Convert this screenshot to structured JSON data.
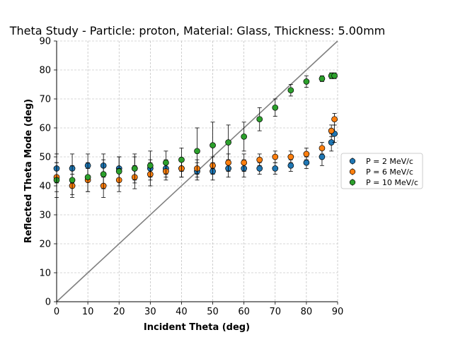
{
  "chart_data": {
    "type": "scatter",
    "title": "Theta Study - Particle: proton, Material: Glass, Thickness: 5.00mm",
    "xlabel": "Incident Theta (deg)",
    "ylabel": "Reflected Theta Mode (deg)",
    "xlim": [
      0,
      90
    ],
    "ylim": [
      0,
      90
    ],
    "xticks": [
      "0",
      "10",
      "20",
      "30",
      "40",
      "50",
      "60",
      "70",
      "80",
      "90"
    ],
    "yticks": [
      "0",
      "10",
      "20",
      "30",
      "40",
      "50",
      "60",
      "70",
      "80",
      "90"
    ],
    "grid": true,
    "legend_position": "right",
    "reference_line": {
      "x": [
        0,
        90
      ],
      "y": [
        0,
        90
      ],
      "color": "#808080"
    },
    "series": [
      {
        "name": "P = 2 MeV/c",
        "color": "#1f77b4",
        "x": [
          0,
          5,
          10,
          15,
          20,
          25,
          30,
          35,
          40,
          45,
          50,
          55,
          60,
          65,
          70,
          75,
          80,
          85,
          88,
          89
        ],
        "y": [
          46,
          46,
          47,
          47,
          46,
          46,
          46,
          46,
          46,
          45,
          45,
          46,
          46,
          46,
          46,
          47,
          48,
          50,
          55,
          58
        ],
        "err": [
          5,
          5,
          4,
          4,
          4,
          4,
          3,
          3,
          3,
          3,
          3,
          3,
          3,
          2,
          2,
          2,
          2,
          3,
          3,
          3
        ]
      },
      {
        "name": "P = 6 MeV/c",
        "color": "#ff7f0e",
        "x": [
          0,
          5,
          10,
          15,
          20,
          25,
          30,
          35,
          40,
          45,
          50,
          55,
          60,
          65,
          70,
          75,
          80,
          85,
          88,
          89
        ],
        "y": [
          43,
          40,
          42,
          40,
          42,
          43,
          44,
          45,
          46,
          46,
          47,
          48,
          48,
          49,
          50,
          50,
          51,
          53,
          59,
          63
        ],
        "err": [
          5,
          4,
          4,
          4,
          4,
          4,
          4,
          3,
          3,
          3,
          3,
          3,
          3,
          2,
          2,
          2,
          2,
          2,
          2,
          2
        ]
      },
      {
        "name": "P = 10 MeV/c",
        "color": "#2ca02c",
        "x": [
          0,
          5,
          10,
          15,
          20,
          25,
          30,
          35,
          40,
          45,
          50,
          55,
          60,
          65,
          70,
          75,
          80,
          85,
          88,
          89
        ],
        "y": [
          42,
          42,
          43,
          44,
          45,
          46,
          47,
          48,
          49,
          52,
          54,
          55,
          57,
          63,
          67,
          73,
          76,
          77,
          78,
          78
        ],
        "err": [
          6,
          5,
          5,
          5,
          5,
          5,
          5,
          4,
          4,
          8,
          8,
          6,
          5,
          4,
          3,
          2,
          2,
          1,
          1,
          1
        ]
      }
    ]
  }
}
